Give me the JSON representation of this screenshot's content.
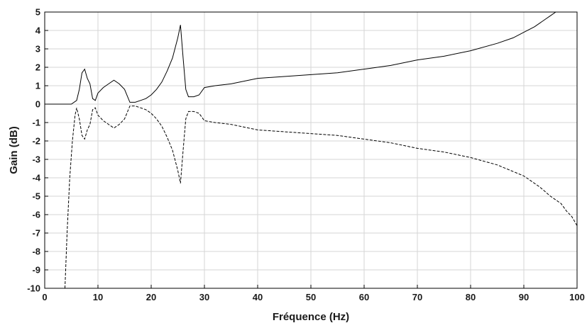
{
  "chart_data": {
    "type": "line",
    "title": "",
    "xlabel": "Fréquence (Hz)",
    "ylabel": "Gain (dB)",
    "xlim": [
      0,
      100
    ],
    "ylim": [
      -10,
      5
    ],
    "x_ticks": [
      0,
      10,
      20,
      30,
      40,
      50,
      60,
      70,
      80,
      90,
      100
    ],
    "x_tick_labels": [
      "0",
      "10",
      "20",
      "30",
      "40",
      "50",
      "60",
      "70",
      "80",
      "90",
      "100"
    ],
    "y_ticks": [
      5,
      4,
      3,
      2,
      1,
      0,
      -1,
      -2,
      -3,
      -4,
      -5,
      -6,
      -7,
      -8,
      -9,
      -10
    ],
    "y_tick_labels": [
      "5",
      "4",
      "3",
      "2",
      "1",
      "0",
      "-1",
      "-2",
      "-3",
      "-4",
      "-5",
      "-6",
      "-7",
      "-8",
      "-9",
      "-10"
    ],
    "grid": true,
    "legend": "none",
    "series": [
      {
        "style": "solid",
        "color": "#000000",
        "x": [
          0,
          5,
          6,
          6.5,
          7,
          7.5,
          8,
          8.5,
          9,
          9.5,
          10,
          11,
          12,
          13,
          14,
          15,
          16,
          17,
          18,
          19,
          20,
          21,
          22,
          23,
          24,
          25,
          25.5,
          26,
          26.5,
          27,
          28,
          29,
          30,
          32,
          35,
          40,
          45,
          50,
          55,
          60,
          65,
          70,
          75,
          80,
          85,
          88,
          90,
          92,
          94,
          95,
          96
        ],
        "y": [
          0,
          0,
          0.2,
          0.8,
          1.7,
          1.9,
          1.4,
          1.1,
          0.3,
          0.2,
          0.6,
          0.9,
          1.1,
          1.3,
          1.1,
          0.8,
          0.1,
          0.1,
          0.2,
          0.3,
          0.5,
          0.8,
          1.2,
          1.8,
          2.5,
          3.6,
          4.3,
          2.5,
          0.8,
          0.4,
          0.4,
          0.5,
          0.9,
          1.0,
          1.1,
          1.4,
          1.5,
          1.6,
          1.7,
          1.9,
          2.1,
          2.4,
          2.6,
          2.9,
          3.3,
          3.6,
          3.9,
          4.2,
          4.6,
          4.8,
          5.0
        ]
      },
      {
        "style": "dashed",
        "color": "#000000",
        "x": [
          3.8,
          4.2,
          4.7,
          5.2,
          5.7,
          6,
          6.5,
          7,
          7.5,
          8,
          8.5,
          9,
          9.5,
          10,
          11,
          12,
          13,
          14,
          15,
          16,
          17,
          18,
          19,
          20,
          21,
          22,
          23,
          24,
          25,
          25.5,
          26,
          26.5,
          27,
          28,
          29,
          30,
          32,
          35,
          40,
          45,
          50,
          55,
          60,
          65,
          70,
          75,
          80,
          85,
          90,
          93,
          95,
          97,
          98,
          99,
          100
        ],
        "y": [
          -10,
          -7,
          -4,
          -2,
          -0.6,
          -0.2,
          -0.8,
          -1.7,
          -1.9,
          -1.4,
          -1.1,
          -0.3,
          -0.2,
          -0.6,
          -0.9,
          -1.1,
          -1.3,
          -1.1,
          -0.8,
          -0.1,
          -0.1,
          -0.2,
          -0.3,
          -0.5,
          -0.8,
          -1.2,
          -1.8,
          -2.5,
          -3.6,
          -4.3,
          -2.5,
          -0.8,
          -0.4,
          -0.4,
          -0.5,
          -0.9,
          -1.0,
          -1.1,
          -1.4,
          -1.5,
          -1.6,
          -1.7,
          -1.9,
          -2.1,
          -2.4,
          -2.6,
          -2.9,
          -3.3,
          -3.9,
          -4.5,
          -5.0,
          -5.4,
          -5.8,
          -6.1,
          -6.6
        ]
      }
    ]
  }
}
